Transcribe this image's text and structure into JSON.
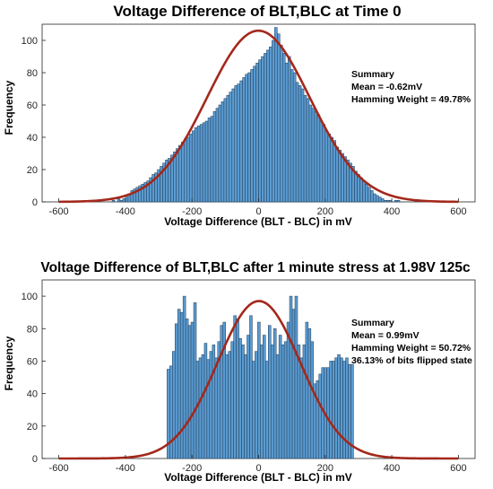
{
  "chart_data": [
    {
      "type": "bar",
      "title": "Voltage Difference of BLT,BLC at Time 0",
      "xlabel": "Voltage Difference (BLT - BLC) in mV",
      "ylabel": "Frequency",
      "xlim": [
        -650,
        650
      ],
      "ylim": [
        0,
        110
      ],
      "xticks": [
        "-600",
        "-400",
        "-200",
        "0",
        "200",
        "400",
        "600"
      ],
      "yticks": [
        "0",
        "20",
        "40",
        "60",
        "80",
        "100"
      ],
      "grid": false,
      "bin_start": -440,
      "bin_width": 8,
      "values": [
        1,
        0,
        2,
        1,
        2,
        3,
        5,
        7,
        8,
        9,
        10,
        11,
        12,
        13,
        15,
        17,
        18,
        20,
        22,
        24,
        26,
        27,
        29,
        31,
        33,
        35,
        37,
        39,
        40,
        42,
        44,
        46,
        47,
        48,
        49,
        50,
        52,
        53,
        56,
        58,
        60,
        62,
        64,
        66,
        68,
        70,
        72,
        73,
        75,
        77,
        79,
        80,
        82,
        84,
        86,
        88,
        90,
        92,
        94,
        96,
        100,
        108,
        104,
        97,
        92,
        86,
        90,
        82,
        80,
        74,
        72,
        70,
        66,
        64,
        60,
        58,
        56,
        54,
        50,
        48,
        44,
        42,
        40,
        38,
        34,
        32,
        30,
        28,
        26,
        24,
        22,
        19,
        17,
        15,
        13,
        11,
        9,
        7,
        5,
        4,
        3,
        2,
        1,
        1,
        1,
        0,
        1,
        1,
        0,
        0
      ],
      "fit": {
        "type": "normal",
        "mean": -0.62,
        "sigma": 155,
        "peak": 106
      },
      "annotation": {
        "heading": "Summary",
        "lines": [
          "Mean = -0.62mV",
          "Hamming Weight = 49.78%"
        ]
      },
      "colors": {
        "bar_fill": "#5b9bd0",
        "bar_edge": "#1f3b57",
        "fit_line": "#a3281b"
      }
    },
    {
      "type": "bar",
      "title": "Voltage Difference of BLT,BLC after 1 minute stress at 1.98V 125c",
      "xlabel": "Voltage Difference (BLT - BLC) in mV",
      "ylabel": "Frequency",
      "xlim": [
        -650,
        650
      ],
      "ylim": [
        0,
        110
      ],
      "xticks": [
        "-600",
        "-400",
        "-200",
        "0",
        "200",
        "400",
        "600"
      ],
      "yticks": [
        "0",
        "20",
        "40",
        "60",
        "80",
        "100"
      ],
      "grid": false,
      "bin_start": -275,
      "bin_width": 8,
      "values": [
        55,
        57,
        66,
        83,
        92,
        90,
        100,
        86,
        82,
        84,
        96,
        60,
        62,
        64,
        71,
        61,
        66,
        70,
        62,
        72,
        82,
        84,
        64,
        66,
        72,
        88,
        86,
        74,
        70,
        64,
        76,
        88,
        60,
        66,
        84,
        70,
        76,
        60,
        82,
        70,
        80,
        64,
        76,
        70,
        72,
        84,
        100,
        92,
        100,
        70,
        62,
        70,
        84,
        80,
        72,
        46,
        48,
        52,
        56,
        56,
        56,
        60,
        60,
        62,
        64,
        62,
        60,
        62,
        58,
        58
      ],
      "fit": {
        "type": "normal",
        "mean": 0.99,
        "sigma": 125,
        "peak": 97
      },
      "annotation": {
        "heading": "Summary",
        "lines": [
          "Mean = 0.99mV",
          "Hamming Weight = 50.72%",
          "36.13% of bits flipped state"
        ]
      },
      "colors": {
        "bar_fill": "#5b9bd0",
        "bar_edge": "#1f3b57",
        "fit_line": "#a3281b"
      }
    }
  ]
}
